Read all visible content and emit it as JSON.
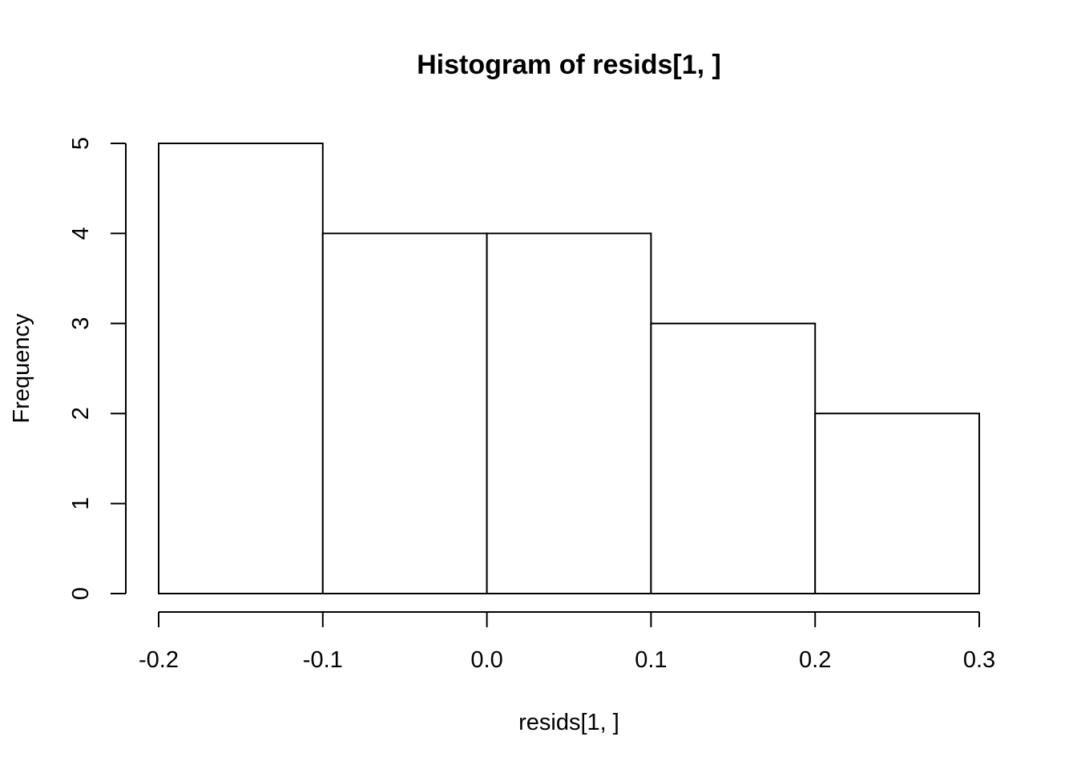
{
  "chart_data": {
    "type": "bar",
    "title": "Histogram of resids[1, ]",
    "xlabel": "resids[1, ]",
    "ylabel": "Frequency",
    "bins": [
      {
        "from": -0.2,
        "to": -0.1,
        "count": 5
      },
      {
        "from": -0.1,
        "to": 0.0,
        "count": 4
      },
      {
        "from": 0.0,
        "to": 0.1,
        "count": 4
      },
      {
        "from": 0.1,
        "to": 0.2,
        "count": 3
      },
      {
        "from": 0.2,
        "to": 0.3,
        "count": 2
      }
    ],
    "xlim": [
      -0.2,
      0.3
    ],
    "ylim": [
      0,
      5
    ],
    "x_ticks": [
      -0.2,
      -0.1,
      0.0,
      0.1,
      0.2,
      0.3
    ],
    "x_tick_labels": [
      "-0.2",
      "-0.1",
      "0.0",
      "0.1",
      "0.2",
      "0.3"
    ],
    "y_ticks": [
      0,
      1,
      2,
      3,
      4,
      5
    ],
    "y_tick_labels": [
      "0",
      "1",
      "2",
      "3",
      "4",
      "5"
    ],
    "grid": false,
    "colors": {
      "bar_fill": "#ffffff",
      "bar_stroke": "#000000"
    }
  }
}
